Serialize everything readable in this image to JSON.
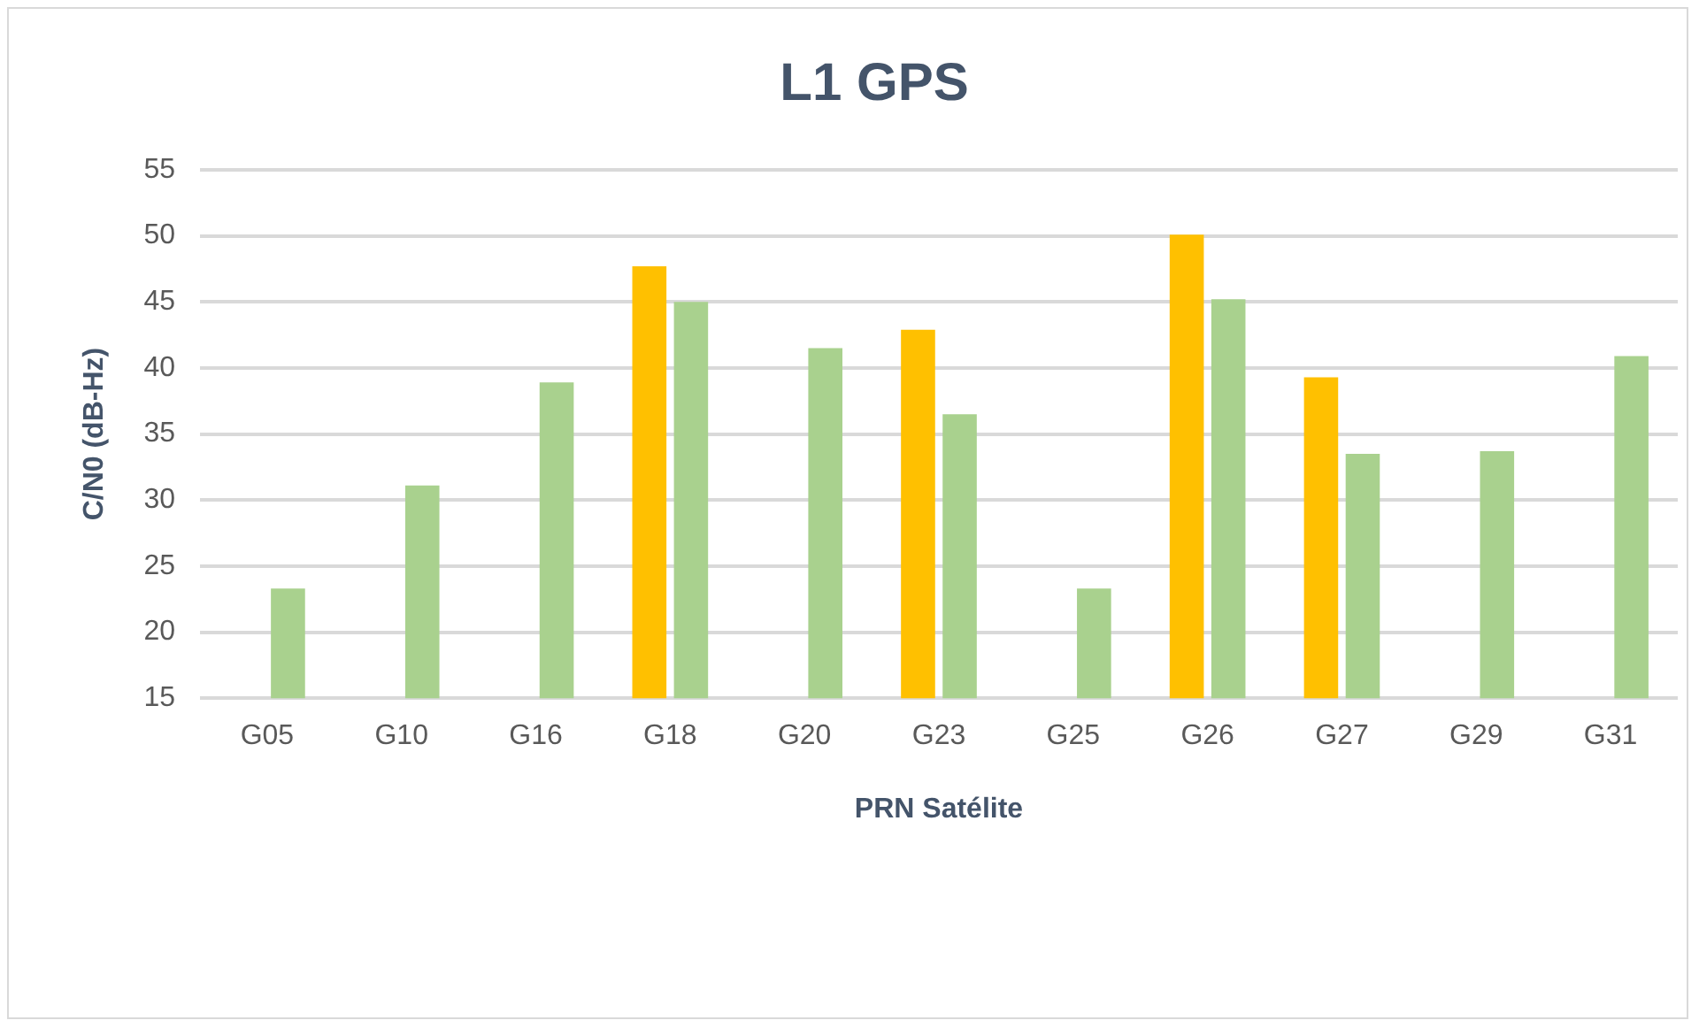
{
  "chart_data": {
    "type": "bar",
    "title": "L1 GPS",
    "xlabel": "PRN Satélite",
    "ylabel": "C/N0 (dB-Hz)",
    "categories": [
      "G05",
      "G10",
      "G16",
      "G18",
      "G20",
      "G23",
      "G25",
      "G26",
      "G27",
      "G29",
      "G31"
    ],
    "series": [
      {
        "color": "#ffc000",
        "values": [
          null,
          null,
          null,
          47.7,
          null,
          42.9,
          null,
          50.1,
          39.3,
          null,
          null
        ]
      },
      {
        "color": "#a9d18e",
        "values": [
          23.3,
          31.1,
          38.9,
          45.0,
          41.5,
          36.5,
          23.3,
          45.2,
          33.5,
          33.7,
          40.9
        ]
      }
    ],
    "ylim": [
      15,
      55
    ],
    "yticks": [
      15,
      20,
      25,
      30,
      35,
      40,
      45,
      50,
      55
    ],
    "grid": "y"
  }
}
